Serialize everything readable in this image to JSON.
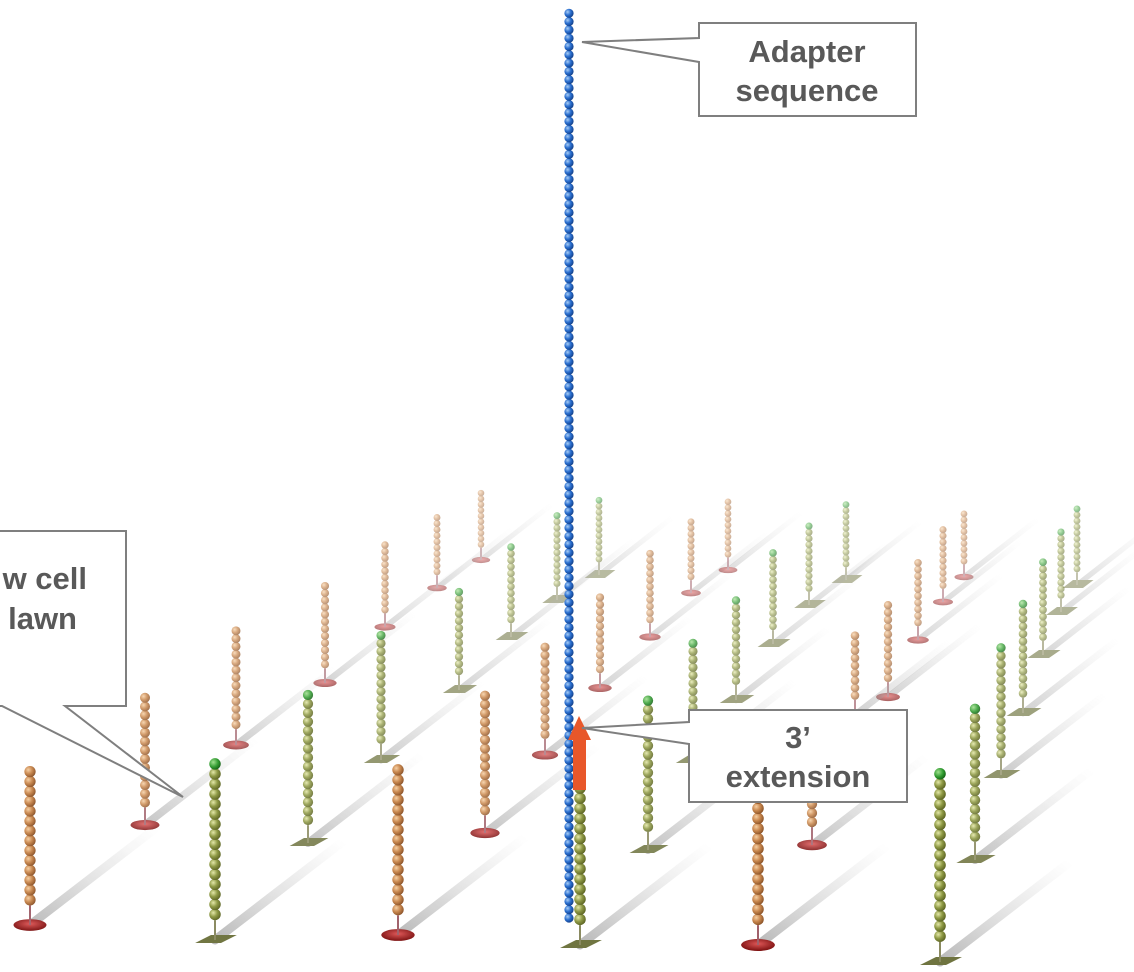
{
  "callouts": [
    {
      "lines": [
        "Adapter",
        "sequence"
      ]
    },
    {
      "lines": [
        "w cell",
        "lawn"
      ]
    },
    {
      "lines": [
        "3’",
        "extension"
      ]
    }
  ]
}
